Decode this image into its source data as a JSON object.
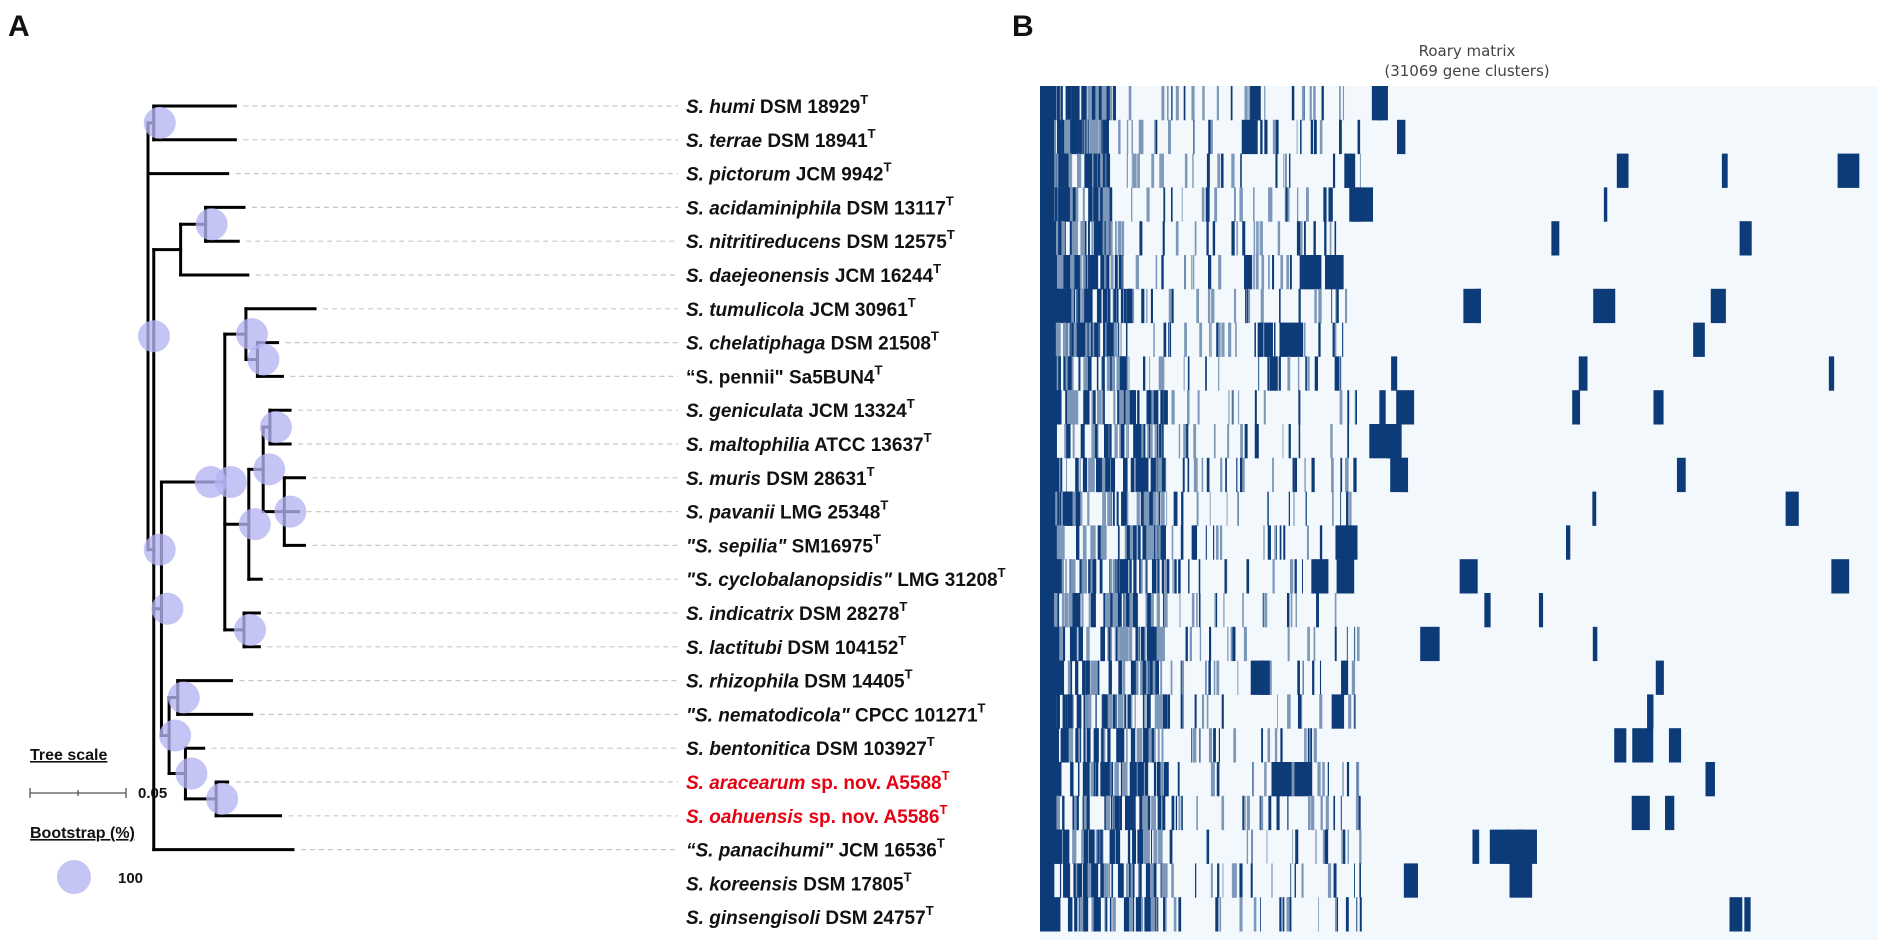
{
  "panels": {
    "a_label": "A",
    "b_label": "B"
  },
  "taxa": [
    {
      "species": "S. humi",
      "strain": " DSM 18929",
      "sup": "T",
      "novel": false
    },
    {
      "species": "S. terrae",
      "strain": " DSM 18941",
      "sup": "T",
      "novel": false
    },
    {
      "species": "S. pictorum",
      "strain": " JCM 9942",
      "sup": "T",
      "novel": false
    },
    {
      "species": "S. acidaminiphila",
      "strain": " DSM 13117",
      "sup": "T",
      "novel": false
    },
    {
      "species": "S. nitritireducens",
      "strain": " DSM 12575",
      "sup": "T",
      "novel": false
    },
    {
      "species": "S. daejeonensis",
      "strain": " JCM 16244",
      "sup": "T",
      "novel": false
    },
    {
      "species": "S. tumulicola",
      "strain": " JCM 30961",
      "sup": "T",
      "novel": false
    },
    {
      "species": "S. chelatiphaga",
      "strain": " DSM 21508",
      "sup": "T",
      "novel": false
    },
    {
      "species": "“S. pennii\"",
      "strain": " Sa5BUN4",
      "sup": "T",
      "novel": false,
      "upright": true
    },
    {
      "species": "S. geniculata",
      "strain": " JCM 13324",
      "sup": "T",
      "novel": false
    },
    {
      "species": "S. maltophilia",
      "strain": " ATCC 13637",
      "sup": "T",
      "novel": false
    },
    {
      "species": "S. muris",
      "strain": " DSM 28631",
      "sup": "T",
      "novel": false
    },
    {
      "species": "S. pavanii",
      "strain": " LMG 25348",
      "sup": "T",
      "novel": false
    },
    {
      "species": "\"S. sepilia\"",
      "strain": " SM16975",
      "sup": "T",
      "novel": false
    },
    {
      "species": "\"S. cyclobalanopsidis\"",
      "strain": " LMG 31208",
      "sup": "T",
      "novel": false
    },
    {
      "species": "S. indicatrix",
      "strain": " DSM 28278",
      "sup": "T",
      "novel": false
    },
    {
      "species": "S. lactitubi",
      "strain": " DSM 104152",
      "sup": "T",
      "novel": false
    },
    {
      "species": "S. rhizophila",
      "strain": " DSM 14405",
      "sup": "T",
      "novel": false
    },
    {
      "species": "\"S. nematodicola\"",
      "strain": " CPCC 101271",
      "sup": "T",
      "novel": false
    },
    {
      "species": "S. bentonitica",
      "strain": " DSM 103927",
      "sup": "T",
      "novel": false
    },
    {
      "species": "S. aracearum",
      "strain": " sp. nov. A5588",
      "sup": "T",
      "novel": true
    },
    {
      "species": "S. oahuensis",
      "strain": " sp. nov. A5586",
      "sup": "T",
      "novel": true
    },
    {
      "species": "“S. panacihumi\"",
      "strain": " JCM 16536",
      "sup": "T",
      "novel": false
    },
    {
      "species": "S. koreensis",
      "strain": " DSM 17805",
      "sup": "T",
      "novel": false
    },
    {
      "species": "S. ginsengisoli",
      "strain": " DSM 24757",
      "sup": "T",
      "novel": false
    }
  ],
  "tree": {
    "branch_lengths": {
      "humi": 0.085,
      "terrae": 0.085,
      "pictorum": 0.083,
      "acidaminiphila": 0.04,
      "nitritireducens": 0.034,
      "daejeonensis": 0.07,
      "tumulicola": 0.072,
      "chelatiphaga": 0.021,
      "pennii": 0.026,
      "geniculata": 0.021,
      "maltophilia": 0.021,
      "muris": 0.021,
      "pavanii": 0.015,
      "sepilia": 0.021,
      "cyclobalanopsidis": 0.013,
      "indicatrix": 0.016,
      "lactitubi": 0.016,
      "rhizophila": 0.056,
      "nematodicola": 0.077,
      "bentonitica": 0.019,
      "aracearum": 0.012,
      "oahuensis": 0.067,
      "panacihumi": 0.145,
      "koreensis": 0.073,
      "ginsengisoli": 0.073
    },
    "newick": "((humi,terrae)100,pictorum,(((acidaminiphila,nitritireducens)100,daejeonensis),((((tumulicola,(chelatiphaga,pennii)100)100,(((geniculata,maltophilia)100,(muris,pavanii,sepilia)100)100,cyclobalanopsidis)100,(indicatrix,lactitubi)100)100)100,((rhizophila,nematodicola)100,(bentonitica,(aracearum,oahuensis)100)100)100)100,panacihumi)100)100,(koreensis,ginsengisoli)100)100)100"
  },
  "legend": {
    "tree_scale_title": "Tree scale",
    "tree_scale_value": "0.05",
    "bootstrap_title": "Bootstrap (%)",
    "bootstrap_value": "100"
  },
  "matrix": {
    "title_line1": "Roary matrix",
    "title_line2": "(31069 gene clusters)",
    "total_gene_clusters": 31069,
    "present_color": "#0d3b78",
    "absent_color": "#f3f8fd"
  },
  "colors": {
    "novel_taxon": "#e60012",
    "bootstrap_circle": "#b3b3f2",
    "branch": "#000000"
  }
}
